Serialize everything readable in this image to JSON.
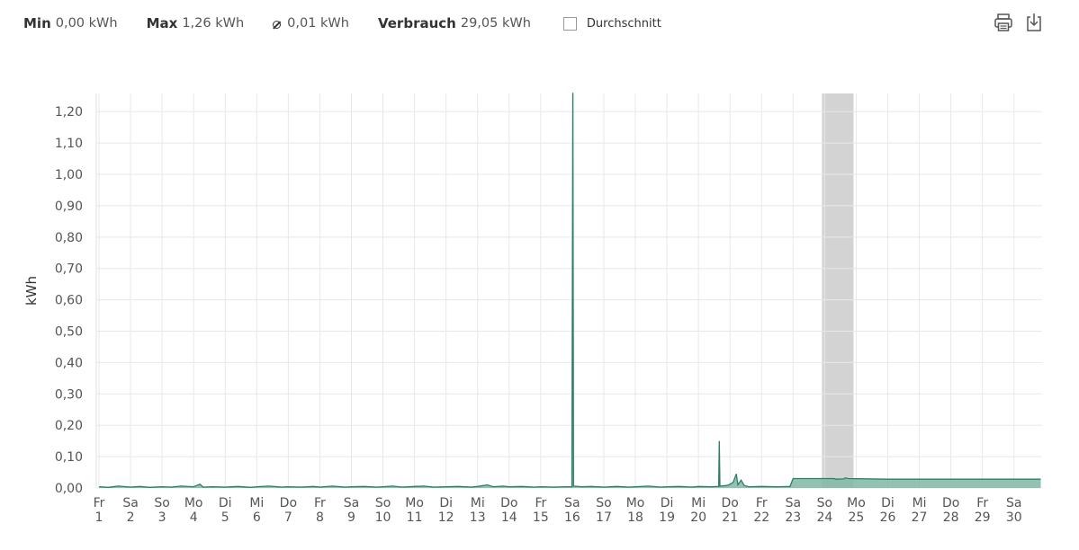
{
  "stats": {
    "min": {
      "label": "Min",
      "value": "0,00 kWh"
    },
    "max": {
      "label": "Max",
      "value": "1,26 kWh"
    },
    "avg": {
      "value": "0,01 kWh"
    },
    "total": {
      "label": "Verbrauch",
      "value": "29,05 kWh"
    },
    "average_toggle": {
      "label": "Durchschnitt",
      "checked": false
    }
  },
  "toolbar": {
    "print_icon": "printer-icon",
    "download_icon": "download-icon"
  },
  "colors": {
    "series": "#2e7d64",
    "fill": "#7fb9a4",
    "grid": "#e8e8e8",
    "highlight": "#c8c8c8"
  },
  "chart_data": {
    "type": "area",
    "ylabel": "kWh",
    "ylim": [
      0,
      1.25
    ],
    "yticks": [
      "0,00",
      "0,10",
      "0,20",
      "0,30",
      "0,40",
      "0,50",
      "0,60",
      "0,70",
      "0,80",
      "0,90",
      "1,00",
      "1,10",
      "1,20"
    ],
    "x_ticks": [
      {
        "day": "Fr",
        "date": "1"
      },
      {
        "day": "Sa",
        "date": "2"
      },
      {
        "day": "So",
        "date": "3"
      },
      {
        "day": "Mo",
        "date": "4"
      },
      {
        "day": "Di",
        "date": "5"
      },
      {
        "day": "Mi",
        "date": "6"
      },
      {
        "day": "Do",
        "date": "7"
      },
      {
        "day": "Fr",
        "date": "8"
      },
      {
        "day": "Sa",
        "date": "9"
      },
      {
        "day": "So",
        "date": "10"
      },
      {
        "day": "Mo",
        "date": "11"
      },
      {
        "day": "Di",
        "date": "12"
      },
      {
        "day": "Mi",
        "date": "13"
      },
      {
        "day": "Do",
        "date": "14"
      },
      {
        "day": "Fr",
        "date": "15"
      },
      {
        "day": "Sa",
        "date": "16"
      },
      {
        "day": "So",
        "date": "17"
      },
      {
        "day": "Mo",
        "date": "18"
      },
      {
        "day": "Di",
        "date": "19"
      },
      {
        "day": "Mi",
        "date": "20"
      },
      {
        "day": "Do",
        "date": "21"
      },
      {
        "day": "Fr",
        "date": "22"
      },
      {
        "day": "Sa",
        "date": "23"
      },
      {
        "day": "So",
        "date": "24"
      },
      {
        "day": "Mo",
        "date": "25"
      },
      {
        "day": "Di",
        "date": "26"
      },
      {
        "day": "Mi",
        "date": "27"
      },
      {
        "day": "Do",
        "date": "28"
      },
      {
        "day": "Fr",
        "date": "29"
      },
      {
        "day": "Sa",
        "date": "30"
      }
    ],
    "highlight_range": [
      24,
      25
    ],
    "series": [
      {
        "points": [
          [
            1,
            0.004
          ],
          [
            1.3,
            0.002
          ],
          [
            1.6,
            0.006
          ],
          [
            2,
            0.003
          ],
          [
            2.3,
            0.005
          ],
          [
            2.6,
            0.002
          ],
          [
            3,
            0.004
          ],
          [
            3.3,
            0.003
          ],
          [
            3.6,
            0.006
          ],
          [
            4,
            0.004
          ],
          [
            4.1,
            0.008
          ],
          [
            4.2,
            0.012
          ],
          [
            4.3,
            0.003
          ],
          [
            4.6,
            0.004
          ],
          [
            5,
            0.003
          ],
          [
            5.4,
            0.005
          ],
          [
            5.8,
            0.002
          ],
          [
            6,
            0.004
          ],
          [
            6.4,
            0.006
          ],
          [
            6.8,
            0.003
          ],
          [
            7,
            0.004
          ],
          [
            7.4,
            0.003
          ],
          [
            7.8,
            0.005
          ],
          [
            8,
            0.003
          ],
          [
            8.4,
            0.006
          ],
          [
            8.8,
            0.003
          ],
          [
            9,
            0.004
          ],
          [
            9.4,
            0.005
          ],
          [
            9.8,
            0.003
          ],
          [
            10,
            0.004
          ],
          [
            10.3,
            0.006
          ],
          [
            10.6,
            0.003
          ],
          [
            11,
            0.005
          ],
          [
            11.3,
            0.006
          ],
          [
            11.6,
            0.003
          ],
          [
            12,
            0.004
          ],
          [
            12.4,
            0.005
          ],
          [
            12.8,
            0.003
          ],
          [
            13,
            0.005
          ],
          [
            13.2,
            0.008
          ],
          [
            13.3,
            0.01
          ],
          [
            13.5,
            0.004
          ],
          [
            13.8,
            0.006
          ],
          [
            14,
            0.004
          ],
          [
            14.4,
            0.005
          ],
          [
            14.8,
            0.003
          ],
          [
            15,
            0.004
          ],
          [
            15.4,
            0.003
          ],
          [
            15.8,
            0.004
          ],
          [
            15.99,
            0.004
          ],
          [
            16.02,
            1.26
          ],
          [
            16.04,
            0.006
          ],
          [
            16.3,
            0.004
          ],
          [
            16.6,
            0.005
          ],
          [
            17,
            0.003
          ],
          [
            17.4,
            0.005
          ],
          [
            17.8,
            0.003
          ],
          [
            18,
            0.004
          ],
          [
            18.4,
            0.006
          ],
          [
            18.8,
            0.003
          ],
          [
            19,
            0.004
          ],
          [
            19.4,
            0.005
          ],
          [
            19.8,
            0.003
          ],
          [
            20,
            0.005
          ],
          [
            20.4,
            0.004
          ],
          [
            20.64,
            0.005
          ],
          [
            20.66,
            0.15
          ],
          [
            20.68,
            0.006
          ],
          [
            20.9,
            0.008
          ],
          [
            21,
            0.012
          ],
          [
            21.1,
            0.018
          ],
          [
            21.2,
            0.045
          ],
          [
            21.25,
            0.01
          ],
          [
            21.35,
            0.025
          ],
          [
            21.45,
            0.008
          ],
          [
            21.6,
            0.004
          ],
          [
            22,
            0.005
          ],
          [
            22.5,
            0.004
          ],
          [
            22.9,
            0.005
          ],
          [
            23.0,
            0.03
          ],
          [
            24.3,
            0.03
          ],
          [
            24.35,
            0.028
          ],
          [
            24.6,
            0.029
          ],
          [
            24.65,
            0.032
          ],
          [
            24.75,
            0.03
          ],
          [
            26,
            0.028
          ],
          [
            28,
            0.028
          ],
          [
            30.85,
            0.028
          ]
        ]
      }
    ]
  }
}
